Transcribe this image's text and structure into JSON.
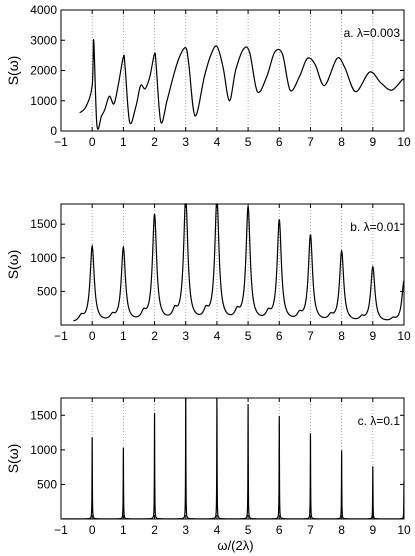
{
  "chart_data": [
    {
      "type": "line",
      "annotation": "a. λ=0.003",
      "ylabel": "S(ω)",
      "xlabel": "",
      "xlim": [
        -1,
        10
      ],
      "ylim": [
        0,
        4000
      ],
      "x_ticks": [
        "−1",
        "0",
        "1",
        "2",
        "3",
        "4",
        "5",
        "6",
        "7",
        "8",
        "9",
        "10"
      ],
      "y_ticks": [
        "0",
        "1000",
        "2000",
        "3000",
        "4000"
      ],
      "grid": "dotted vertical lines at integer x",
      "series": [
        {
          "x": [
            -0.4,
            -0.2,
            0.0,
            0.05,
            0.15,
            0.3,
            0.4,
            0.55,
            0.7,
            0.85,
            1.0,
            1.05,
            1.2,
            1.4,
            1.55,
            1.7,
            1.85,
            2.0,
            2.05,
            2.2,
            2.4,
            2.6,
            2.8,
            3.0,
            3.1,
            3.3,
            3.6,
            3.8,
            4.0,
            4.2,
            4.4,
            4.6,
            4.85,
            5.05,
            5.3,
            5.6,
            5.85,
            6.1,
            6.35,
            6.65,
            6.9,
            7.15,
            7.45,
            7.85,
            8.1,
            8.45,
            8.9,
            9.25,
            9.6,
            9.95,
            10.0
          ],
          "y": [
            600,
            800,
            1500,
            3000,
            200,
            500,
            700,
            1150,
            900,
            1600,
            2450,
            2200,
            300,
            800,
            1500,
            1400,
            1800,
            2550,
            2200,
            300,
            1000,
            1800,
            2450,
            2750,
            2200,
            500,
            1800,
            2500,
            2800,
            2100,
            1000,
            2000,
            2700,
            2600,
            1300,
            1800,
            2600,
            2550,
            1350,
            1800,
            2400,
            2200,
            1500,
            2400,
            2100,
            1300,
            1950,
            1600,
            1350,
            1700,
            1650
          ]
        }
      ]
    },
    {
      "type": "line",
      "annotation": "b. λ=0.01",
      "ylabel": "S(ω)",
      "xlabel": "",
      "xlim": [
        -1,
        10
      ],
      "ylim": [
        0,
        1800
      ],
      "x_ticks": [
        "−1",
        "0",
        "1",
        "2",
        "3",
        "4",
        "5",
        "6",
        "7",
        "8",
        "9",
        "10"
      ],
      "y_ticks": [
        "500",
        "1000",
        "1500"
      ],
      "grid": "dotted vertical lines at integer x",
      "peaks": {
        "x": [
          0,
          1,
          2,
          3,
          4,
          5,
          6,
          7,
          8,
          9,
          10
        ],
        "y": [
          1130,
          1100,
          1590,
          1850,
          1830,
          1700,
          1510,
          1290,
          1050,
          820,
          620
        ]
      }
    },
    {
      "type": "line",
      "annotation": "c. λ=0.1",
      "ylabel": "S(ω)",
      "xlabel": "ω/(2λ)",
      "xlim": [
        -1,
        10
      ],
      "ylim": [
        0,
        1750
      ],
      "x_ticks": [
        "−1",
        "0",
        "1",
        "2",
        "3",
        "4",
        "5",
        "6",
        "7",
        "8",
        "9",
        "10"
      ],
      "y_ticks": [
        "500",
        "1000",
        "1500"
      ],
      "grid": "dotted vertical lines at integer x",
      "peaks": {
        "x": [
          0,
          1,
          2,
          3,
          4,
          5,
          6,
          7,
          8,
          9,
          10
        ],
        "y": [
          1180,
          1030,
          1530,
          1750,
          1750,
          1660,
          1490,
          1240,
          990,
          760,
          550
        ]
      }
    }
  ]
}
